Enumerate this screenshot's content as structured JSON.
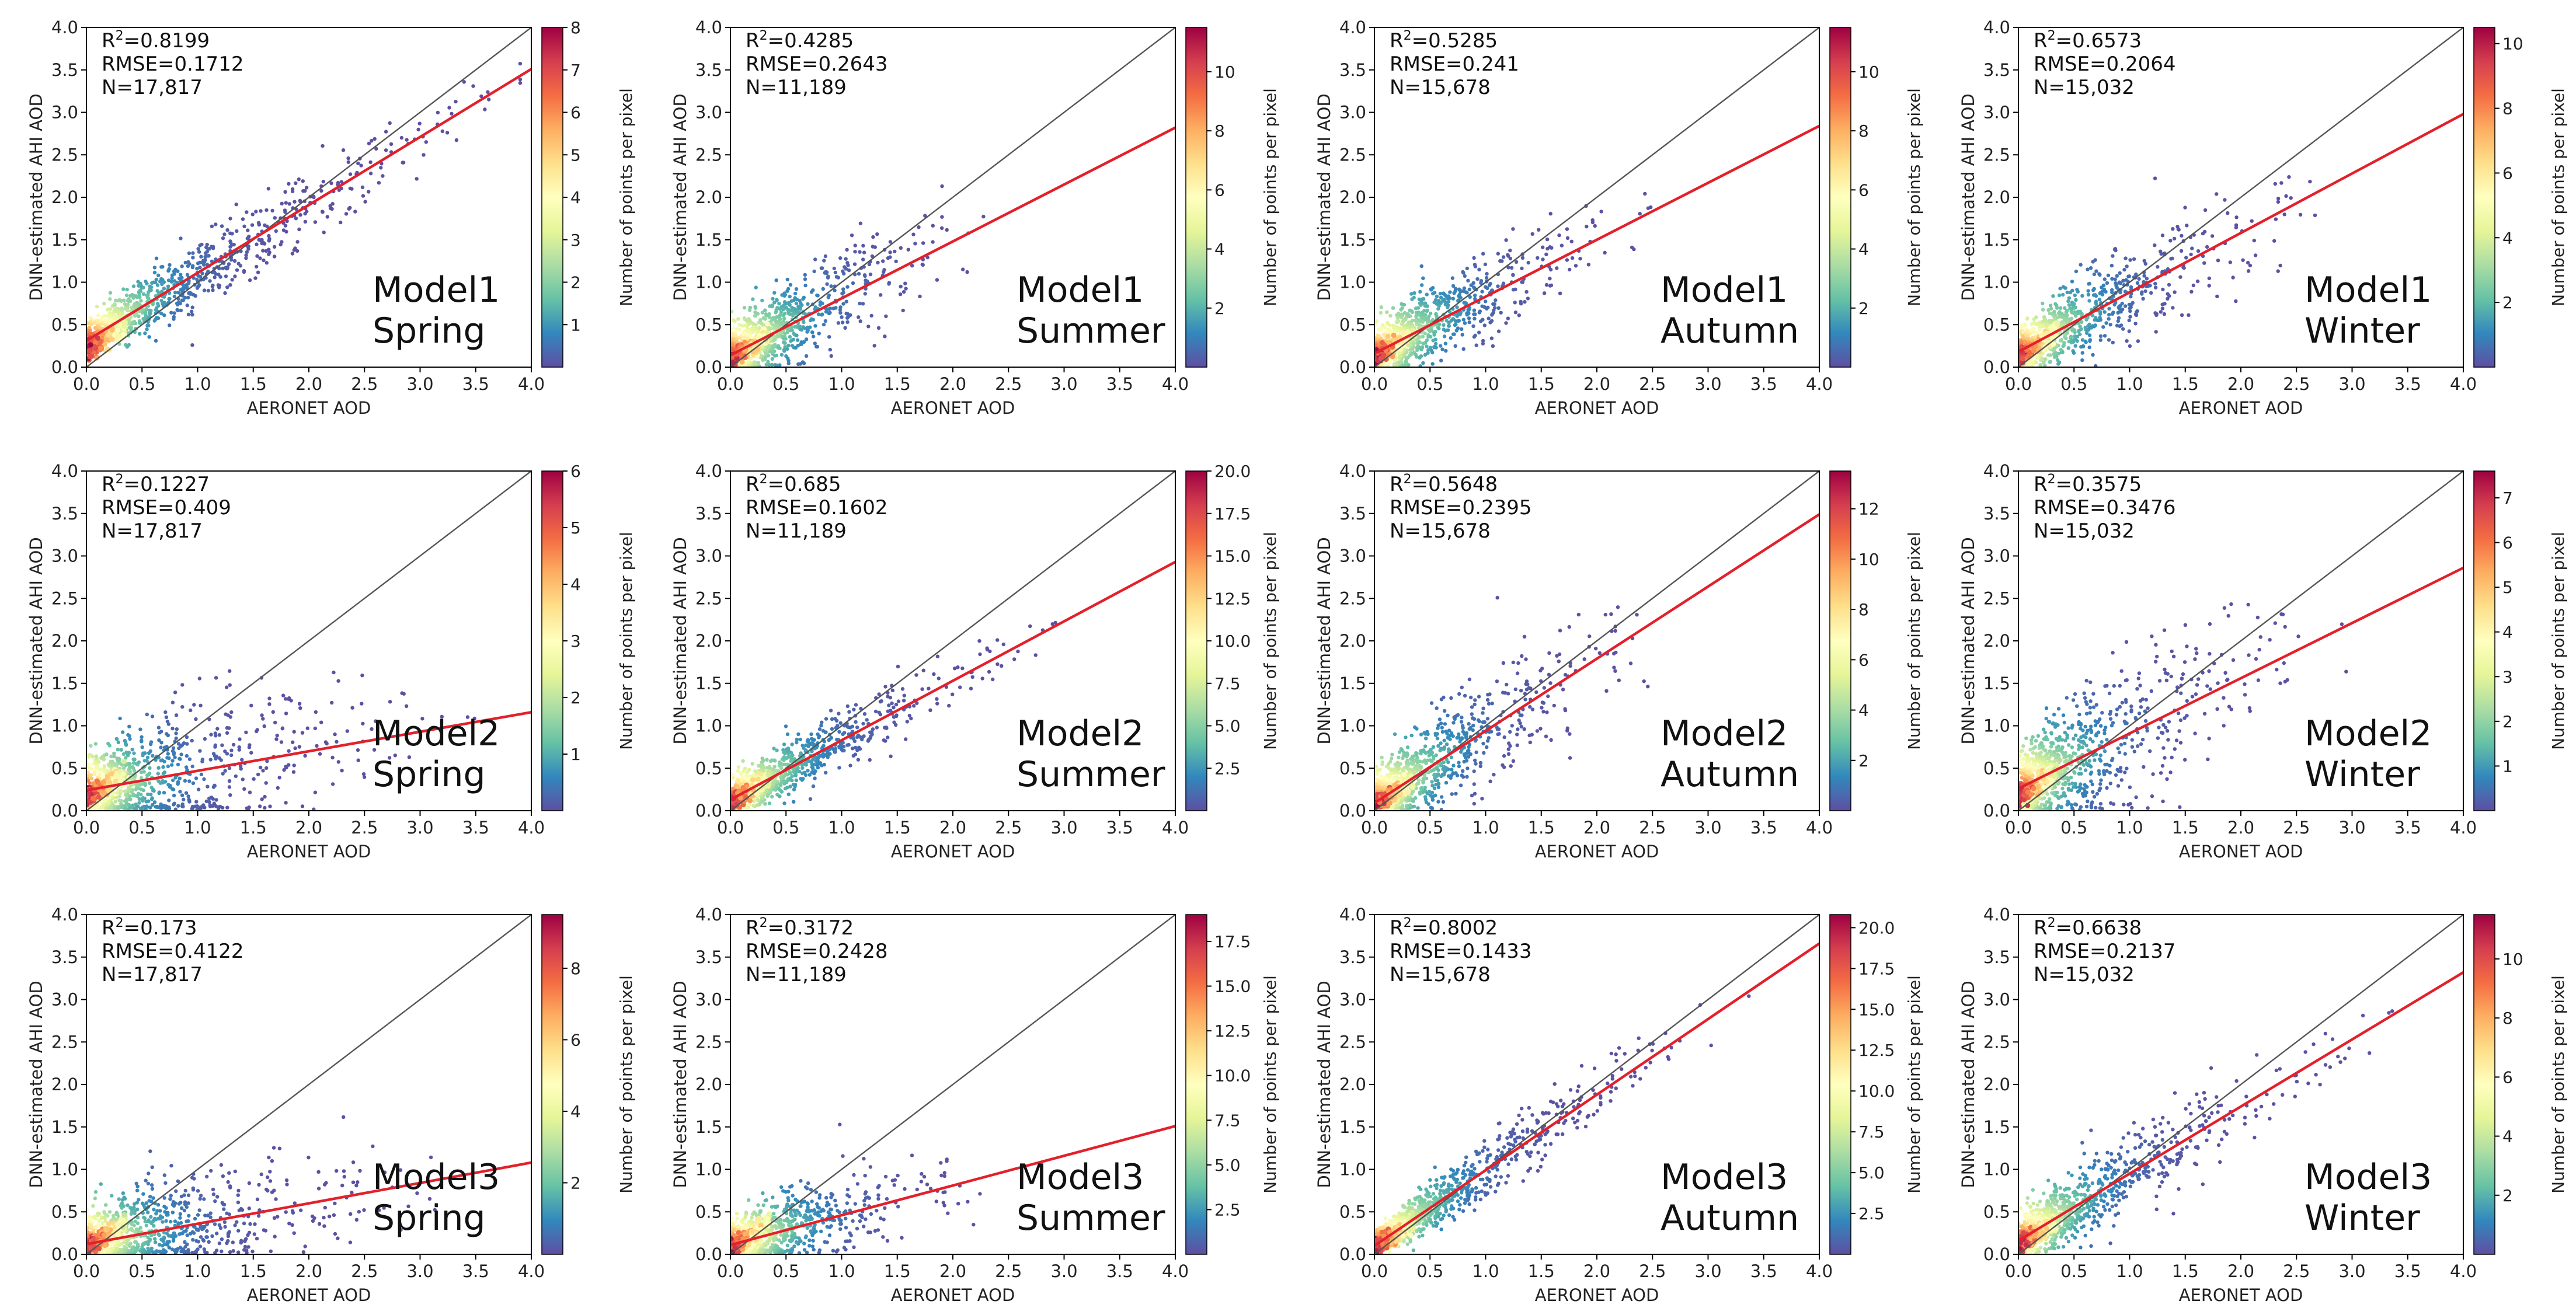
{
  "figure": {
    "xlabel": "AERONET AOD",
    "ylabel": "DNN-estimated AHI AOD",
    "colorbar_label": "Number of points per pixel",
    "xlim": [
      0,
      4
    ],
    "ylim": [
      0,
      4
    ],
    "axis_ticks": [
      "0.0",
      "0.5",
      "1.0",
      "1.5",
      "2.0",
      "2.5",
      "3.0",
      "3.5",
      "4.0"
    ],
    "one_to_one_line_color": "#555555",
    "fit_line_color": "#e3202b",
    "colormap": "Spectral_r"
  },
  "chart_data": [
    {
      "type": "scatter",
      "model": "Model1",
      "season": "Spring",
      "r2_prefix": "R",
      "r2_value": "=0.8199",
      "rmse": "RMSE=0.1712",
      "n": "N=17,817",
      "fit": {
        "slope": 0.8,
        "intercept": 0.31
      },
      "spread": 0.18,
      "extent": 3.0,
      "cb_max": 8,
      "cb_ticks": [
        {
          "v": 1,
          "t": "1"
        },
        {
          "v": 2,
          "t": "2"
        },
        {
          "v": 3,
          "t": "3"
        },
        {
          "v": 4,
          "t": "4"
        },
        {
          "v": 5,
          "t": "5"
        },
        {
          "v": 6,
          "t": "6"
        },
        {
          "v": 7,
          "t": "7"
        },
        {
          "v": 8,
          "t": "8"
        }
      ]
    },
    {
      "type": "scatter",
      "model": "Model1",
      "season": "Summer",
      "r2_prefix": "R",
      "r2_value": "=0.4285",
      "rmse": "RMSE=0.2643",
      "n": "N=11,189",
      "fit": {
        "slope": 0.67,
        "intercept": 0.14
      },
      "spread": 0.28,
      "extent": 1.6,
      "cb_max": 11.5,
      "cb_ticks": [
        {
          "v": 2,
          "t": "2"
        },
        {
          "v": 4,
          "t": "4"
        },
        {
          "v": 6,
          "t": "6"
        },
        {
          "v": 8,
          "t": "8"
        },
        {
          "v": 10,
          "t": "10"
        }
      ]
    },
    {
      "type": "scatter",
      "model": "Model1",
      "season": "Autumn",
      "r2_prefix": "R",
      "r2_value": "=0.5285",
      "rmse": "RMSE=0.241",
      "n": "N=15,678",
      "fit": {
        "slope": 0.67,
        "intercept": 0.16
      },
      "spread": 0.26,
      "extent": 1.7,
      "cb_max": 11.5,
      "cb_ticks": [
        {
          "v": 2,
          "t": "2"
        },
        {
          "v": 4,
          "t": "4"
        },
        {
          "v": 6,
          "t": "6"
        },
        {
          "v": 8,
          "t": "8"
        },
        {
          "v": 10,
          "t": "10"
        }
      ]
    },
    {
      "type": "scatter",
      "model": "Model1",
      "season": "Winter",
      "r2_prefix": "R",
      "r2_value": "=0.6573",
      "rmse": "RMSE=0.2064",
      "n": "N=15,032",
      "fit": {
        "slope": 0.7,
        "intercept": 0.18
      },
      "spread": 0.24,
      "extent": 2.0,
      "cb_max": 10.5,
      "cb_ticks": [
        {
          "v": 2,
          "t": "2"
        },
        {
          "v": 4,
          "t": "4"
        },
        {
          "v": 6,
          "t": "6"
        },
        {
          "v": 8,
          "t": "8"
        },
        {
          "v": 10,
          "t": "10"
        }
      ]
    },
    {
      "type": "scatter",
      "model": "Model2",
      "season": "Spring",
      "r2_prefix": "R",
      "r2_value": "=0.1227",
      "rmse": "RMSE=0.409",
      "n": "N=17,817",
      "fit": {
        "slope": 0.23,
        "intercept": 0.24
      },
      "spread": 0.38,
      "extent": 2.4,
      "cb_max": 6,
      "cb_ticks": [
        {
          "v": 1,
          "t": "1"
        },
        {
          "v": 2,
          "t": "2"
        },
        {
          "v": 3,
          "t": "3"
        },
        {
          "v": 4,
          "t": "4"
        },
        {
          "v": 5,
          "t": "5"
        },
        {
          "v": 6,
          "t": "6"
        }
      ]
    },
    {
      "type": "scatter",
      "model": "Model2",
      "season": "Summer",
      "r2_prefix": "R",
      "r2_value": "=0.685",
      "rmse": "RMSE=0.1602",
      "n": "N=11,189",
      "fit": {
        "slope": 0.7,
        "intercept": 0.13
      },
      "spread": 0.17,
      "extent": 2.0,
      "cb_max": 20,
      "cb_ticks": [
        {
          "v": 2.5,
          "t": "2.5"
        },
        {
          "v": 5,
          "t": "5.0"
        },
        {
          "v": 7.5,
          "t": "7.5"
        },
        {
          "v": 10,
          "t": "10.0"
        },
        {
          "v": 12.5,
          "t": "12.5"
        },
        {
          "v": 15,
          "t": "15.0"
        },
        {
          "v": 17.5,
          "t": "17.5"
        },
        {
          "v": 20,
          "t": "20.0"
        }
      ]
    },
    {
      "type": "scatter",
      "model": "Model2",
      "season": "Autumn",
      "r2_prefix": "R",
      "r2_value": "=0.5648",
      "rmse": "RMSE=0.2395",
      "n": "N=15,678",
      "fit": {
        "slope": 0.85,
        "intercept": 0.09
      },
      "spread": 0.3,
      "extent": 1.8,
      "cb_max": 13.5,
      "cb_ticks": [
        {
          "v": 2,
          "t": "2"
        },
        {
          "v": 4,
          "t": "4"
        },
        {
          "v": 6,
          "t": "6"
        },
        {
          "v": 8,
          "t": "8"
        },
        {
          "v": 10,
          "t": "10"
        },
        {
          "v": 12,
          "t": "12"
        }
      ]
    },
    {
      "type": "scatter",
      "model": "Model2",
      "season": "Winter",
      "r2_prefix": "R",
      "r2_value": "=0.3575",
      "rmse": "RMSE=0.3476",
      "n": "N=15,032",
      "fit": {
        "slope": 0.65,
        "intercept": 0.26
      },
      "spread": 0.4,
      "extent": 2.0,
      "cb_max": 7.6,
      "cb_ticks": [
        {
          "v": 1,
          "t": "1"
        },
        {
          "v": 2,
          "t": "2"
        },
        {
          "v": 3,
          "t": "3"
        },
        {
          "v": 4,
          "t": "4"
        },
        {
          "v": 5,
          "t": "5"
        },
        {
          "v": 6,
          "t": "6"
        },
        {
          "v": 7,
          "t": "7"
        }
      ]
    },
    {
      "type": "scatter",
      "model": "Model3",
      "season": "Spring",
      "r2_prefix": "R",
      "r2_value": "=0.173",
      "rmse": "RMSE=0.4122",
      "n": "N=17,817",
      "fit": {
        "slope": 0.24,
        "intercept": 0.12
      },
      "spread": 0.3,
      "extent": 2.3,
      "cb_max": 9.5,
      "cb_ticks": [
        {
          "v": 2,
          "t": "2"
        },
        {
          "v": 4,
          "t": "4"
        },
        {
          "v": 6,
          "t": "6"
        },
        {
          "v": 8,
          "t": "8"
        }
      ]
    },
    {
      "type": "scatter",
      "model": "Model3",
      "season": "Summer",
      "r2_prefix": "R",
      "r2_value": "=0.3172",
      "rmse": "RMSE=0.2428",
      "n": "N=11,189",
      "fit": {
        "slope": 0.35,
        "intercept": 0.11
      },
      "spread": 0.22,
      "extent": 1.6,
      "cb_max": 19,
      "cb_ticks": [
        {
          "v": 2.5,
          "t": "2.5"
        },
        {
          "v": 5,
          "t": "5.0"
        },
        {
          "v": 7.5,
          "t": "7.5"
        },
        {
          "v": 10,
          "t": "10.0"
        },
        {
          "v": 12.5,
          "t": "12.5"
        },
        {
          "v": 15,
          "t": "15.0"
        },
        {
          "v": 17.5,
          "t": "17.5"
        }
      ]
    },
    {
      "type": "scatter",
      "model": "Model3",
      "season": "Autumn",
      "r2_prefix": "R",
      "r2_value": "=0.8002",
      "rmse": "RMSE=0.1433",
      "n": "N=15,678",
      "fit": {
        "slope": 0.89,
        "intercept": 0.1
      },
      "spread": 0.16,
      "extent": 2.3,
      "cb_max": 20.8,
      "cb_ticks": [
        {
          "v": 2.5,
          "t": "2.5"
        },
        {
          "v": 5,
          "t": "5.0"
        },
        {
          "v": 7.5,
          "t": "7.5"
        },
        {
          "v": 10,
          "t": "10.0"
        },
        {
          "v": 12.5,
          "t": "12.5"
        },
        {
          "v": 15,
          "t": "15.0"
        },
        {
          "v": 17.5,
          "t": "17.5"
        },
        {
          "v": 20,
          "t": "20.0"
        }
      ]
    },
    {
      "type": "scatter",
      "model": "Model3",
      "season": "Winter",
      "r2_prefix": "R",
      "r2_value": "=0.6638",
      "rmse": "RMSE=0.2137",
      "n": "N=15,032",
      "fit": {
        "slope": 0.79,
        "intercept": 0.16
      },
      "spread": 0.22,
      "extent": 2.3,
      "cb_max": 11.5,
      "cb_ticks": [
        {
          "v": 2,
          "t": "2"
        },
        {
          "v": 4,
          "t": "4"
        },
        {
          "v": 6,
          "t": "6"
        },
        {
          "v": 8,
          "t": "8"
        },
        {
          "v": 10,
          "t": "10"
        }
      ]
    }
  ]
}
